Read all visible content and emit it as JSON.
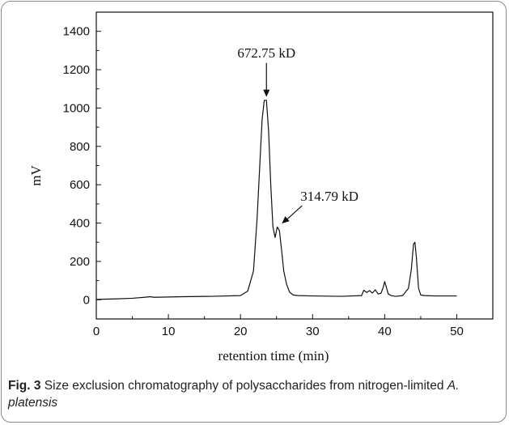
{
  "chart_data": {
    "type": "line",
    "xlabel": "retention time (min)",
    "ylabel": "mV",
    "xlim": [
      0,
      55
    ],
    "ylim": [
      -100,
      1500
    ],
    "xticks": [
      0,
      10,
      20,
      30,
      40,
      50
    ],
    "yticks": [
      0,
      200,
      400,
      600,
      800,
      1000,
      1200,
      1400
    ],
    "grid": false,
    "series": [
      {
        "name": "",
        "x": [
          0,
          3,
          5,
          7,
          7.5,
          8,
          12,
          16,
          20,
          21,
          21.8,
          22.3,
          22.7,
          23.0,
          23.3,
          23.6,
          23.9,
          24.2,
          24.5,
          24.8,
          25.1,
          25.4,
          25.7,
          26.0,
          26.4,
          26.8,
          27.3,
          28,
          30,
          34,
          36.8,
          37.1,
          37.5,
          37.9,
          38.3,
          38.7,
          39.1,
          39.5,
          39.8,
          40.0,
          40.2,
          40.5,
          40.9,
          41.5,
          42.5,
          43.3,
          43.7,
          44.0,
          44.2,
          44.4,
          44.7,
          45.0,
          45.5,
          47,
          50
        ],
        "values": [
          2,
          5,
          8,
          14,
          16,
          13,
          16,
          18,
          22,
          45,
          150,
          420,
          720,
          940,
          1040,
          1040,
          880,
          600,
          380,
          325,
          380,
          360,
          260,
          150,
          80,
          40,
          25,
          22,
          20,
          18,
          22,
          50,
          38,
          48,
          35,
          52,
          30,
          35,
          65,
          95,
          70,
          30,
          22,
          18,
          22,
          60,
          160,
          290,
          300,
          220,
          60,
          25,
          22,
          20,
          20
        ]
      }
    ],
    "annotations": [
      {
        "text": "672.75 kD",
        "x": 23.6,
        "y": 1045
      },
      {
        "text": "314.79 kD",
        "x": 25.4,
        "y": 385
      }
    ]
  },
  "caption": {
    "label": "Fig. 3",
    "text_before": "  Size exclusion chromatography of polysaccharides from nitrogen-limited ",
    "species": "A. platensis"
  }
}
